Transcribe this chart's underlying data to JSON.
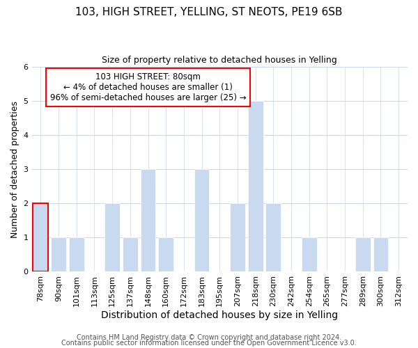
{
  "title": "103, HIGH STREET, YELLING, ST NEOTS, PE19 6SB",
  "subtitle": "Size of property relative to detached houses in Yelling",
  "xlabel": "Distribution of detached houses by size in Yelling",
  "ylabel": "Number of detached properties",
  "categories": [
    "78sqm",
    "90sqm",
    "101sqm",
    "113sqm",
    "125sqm",
    "137sqm",
    "148sqm",
    "160sqm",
    "172sqm",
    "183sqm",
    "195sqm",
    "207sqm",
    "218sqm",
    "230sqm",
    "242sqm",
    "254sqm",
    "265sqm",
    "277sqm",
    "289sqm",
    "300sqm",
    "312sqm"
  ],
  "values": [
    2,
    1,
    1,
    0,
    2,
    1,
    3,
    1,
    0,
    3,
    0,
    2,
    5,
    2,
    0,
    1,
    0,
    0,
    1,
    1,
    0
  ],
  "bar_color": "#c9d9f0",
  "bar_edge_color": "#ffffff",
  "subject_bar_index": 0,
  "subject_bar_edge_color": "red",
  "ylim": [
    0,
    6
  ],
  "yticks": [
    0,
    1,
    2,
    3,
    4,
    5,
    6
  ],
  "annotation_box_text": "103 HIGH STREET: 80sqm\n← 4% of detached houses are smaller (1)\n96% of semi-detached houses are larger (25) →",
  "annotation_box_color": "white",
  "annotation_box_edge_color": "red",
  "grid_color": "#c8d8e8",
  "footer_line1": "Contains HM Land Registry data © Crown copyright and database right 2024.",
  "footer_line2": "Contains public sector information licensed under the Open Government Licence v3.0.",
  "title_fontsize": 11,
  "subtitle_fontsize": 9,
  "xlabel_fontsize": 10,
  "ylabel_fontsize": 9,
  "tick_fontsize": 8,
  "footer_fontsize": 7
}
